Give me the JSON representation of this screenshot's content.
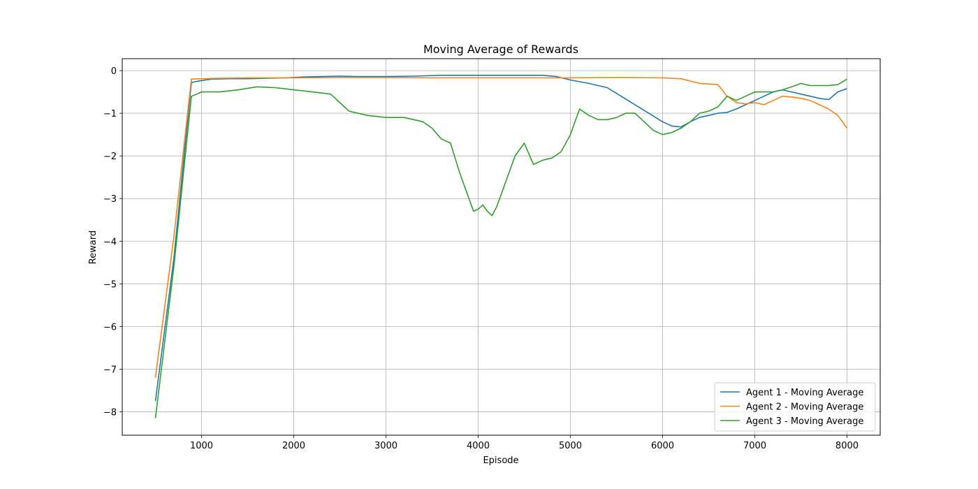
{
  "chart_data": {
    "type": "line",
    "title": "Moving Average of Rewards",
    "xlabel": "Episode",
    "ylabel": "Reward",
    "xlim": [
      140,
      8360
    ],
    "ylim": [
      -8.55,
      0.28
    ],
    "xticks": [
      1000,
      2000,
      3000,
      4000,
      5000,
      6000,
      7000,
      8000
    ],
    "yticks": [
      0,
      -1,
      -2,
      -3,
      -4,
      -5,
      -6,
      -7,
      -8
    ],
    "grid": true,
    "legend_position": "lower-right",
    "series": [
      {
        "name": "Agent 1 - Moving Average",
        "color": "#1f77b4",
        "x": [
          500,
          700,
          890,
          950,
          1100,
          1300,
          1500,
          1700,
          1900,
          2000,
          2100,
          2300,
          2500,
          2700,
          3000,
          3300,
          3600,
          4000,
          4400,
          4700,
          4850,
          5000,
          5200,
          5400,
          5550,
          5700,
          5850,
          6000,
          6100,
          6200,
          6300,
          6400,
          6500,
          6600,
          6700,
          6800,
          6900,
          7000,
          7100,
          7200,
          7300,
          7400,
          7500,
          7600,
          7700,
          7800,
          7900,
          8000
        ],
        "y": [
          -7.75,
          -4.4,
          -0.28,
          -0.25,
          -0.2,
          -0.19,
          -0.19,
          -0.18,
          -0.17,
          -0.16,
          -0.15,
          -0.14,
          -0.13,
          -0.14,
          -0.14,
          -0.13,
          -0.11,
          -0.11,
          -0.11,
          -0.11,
          -0.14,
          -0.22,
          -0.3,
          -0.4,
          -0.6,
          -0.8,
          -1.0,
          -1.2,
          -1.3,
          -1.32,
          -1.2,
          -1.1,
          -1.05,
          -1.0,
          -0.98,
          -0.9,
          -0.8,
          -0.7,
          -0.6,
          -0.5,
          -0.45,
          -0.5,
          -0.55,
          -0.6,
          -0.65,
          -0.68,
          -0.5,
          -0.42
        ]
      },
      {
        "name": "Agent 2 - Moving Average",
        "color": "#ff7f0e",
        "x": [
          500,
          700,
          890,
          1000,
          1200,
          1500,
          2000,
          2500,
          3000,
          3500,
          4000,
          4500,
          5000,
          5500,
          6000,
          6200,
          6400,
          6600,
          6700,
          6800,
          6900,
          7000,
          7100,
          7200,
          7300,
          7400,
          7500,
          7600,
          7700,
          7800,
          7900,
          8000
        ],
        "y": [
          -7.2,
          -3.9,
          -0.2,
          -0.19,
          -0.18,
          -0.17,
          -0.17,
          -0.16,
          -0.16,
          -0.17,
          -0.17,
          -0.17,
          -0.17,
          -0.16,
          -0.17,
          -0.19,
          -0.3,
          -0.33,
          -0.6,
          -0.75,
          -0.78,
          -0.75,
          -0.8,
          -0.7,
          -0.6,
          -0.62,
          -0.65,
          -0.7,
          -0.8,
          -0.9,
          -1.05,
          -1.35
        ]
      },
      {
        "name": "Agent 3 - Moving Average",
        "color": "#2ca02c",
        "x": [
          500,
          700,
          890,
          950,
          1000,
          1200,
          1400,
          1600,
          1800,
          2000,
          2200,
          2400,
          2500,
          2600,
          2800,
          3000,
          3200,
          3400,
          3500,
          3600,
          3700,
          3800,
          3900,
          3950,
          4000,
          4050,
          4100,
          4150,
          4200,
          4300,
          4350,
          4400,
          4500,
          4600,
          4700,
          4800,
          4900,
          5000,
          5050,
          5100,
          5200,
          5300,
          5400,
          5500,
          5600,
          5700,
          5800,
          5900,
          6000,
          6100,
          6200,
          6300,
          6400,
          6500,
          6600,
          6700,
          6800,
          6900,
          7000,
          7100,
          7200,
          7300,
          7400,
          7500,
          7600,
          7700,
          7800,
          7900,
          8000
        ],
        "y": [
          -8.15,
          -4.6,
          -0.6,
          -0.55,
          -0.5,
          -0.5,
          -0.45,
          -0.38,
          -0.4,
          -0.45,
          -0.5,
          -0.55,
          -0.75,
          -0.95,
          -1.05,
          -1.1,
          -1.1,
          -1.2,
          -1.35,
          -1.6,
          -1.7,
          -2.4,
          -3.0,
          -3.3,
          -3.25,
          -3.15,
          -3.3,
          -3.4,
          -3.2,
          -2.6,
          -2.3,
          -2.0,
          -1.7,
          -2.2,
          -2.1,
          -2.05,
          -1.9,
          -1.5,
          -1.2,
          -0.9,
          -1.05,
          -1.15,
          -1.15,
          -1.1,
          -1.0,
          -1.0,
          -1.2,
          -1.4,
          -1.5,
          -1.45,
          -1.35,
          -1.2,
          -1.0,
          -0.95,
          -0.85,
          -0.6,
          -0.7,
          -0.6,
          -0.5,
          -0.5,
          -0.5,
          -0.45,
          -0.38,
          -0.3,
          -0.35,
          -0.35,
          -0.35,
          -0.33,
          -0.2
        ]
      }
    ]
  }
}
